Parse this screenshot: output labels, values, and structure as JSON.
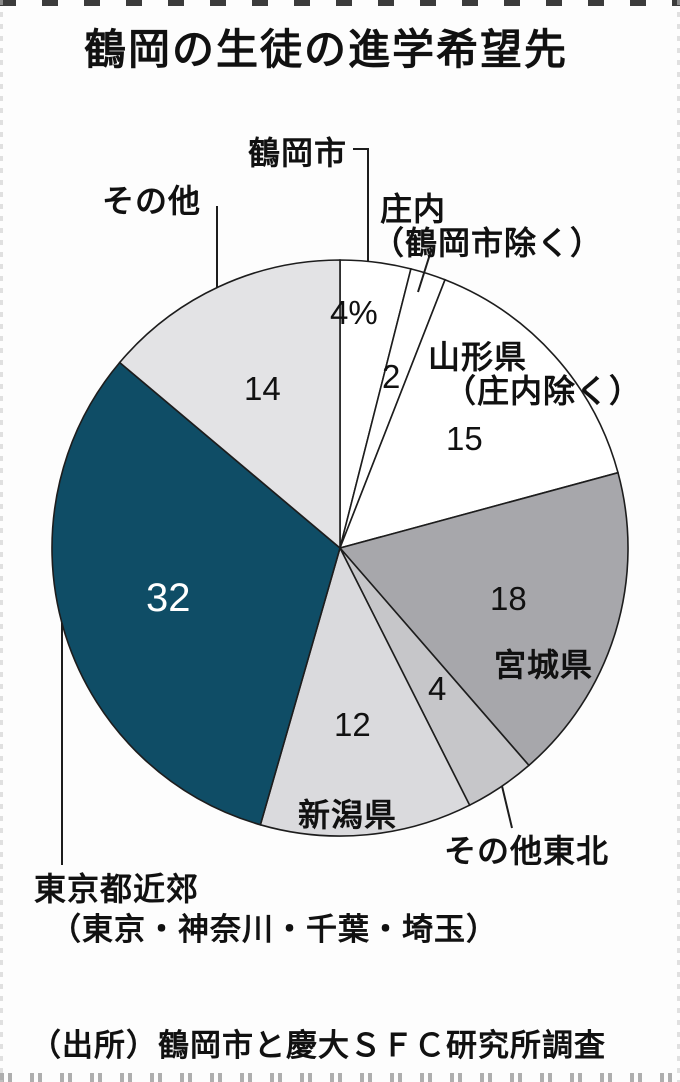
{
  "title": "鶴岡の生徒の進学希望先",
  "source": "（出所）鶴岡市と慶大ＳＦＣ研究所調査",
  "chart_data": {
    "type": "pie",
    "title": "鶴岡の生徒の進学希望先",
    "unit": "%",
    "start_angle_deg": 0,
    "direction": "clockwise",
    "legend_position": "none",
    "labels_on_chart": true,
    "slices": [
      {
        "label": "鶴岡市",
        "value": 4,
        "value_label": "4%",
        "color": "#ffffff"
      },
      {
        "label": "庄内（鶴岡市除く）",
        "value": 2,
        "value_label": "2",
        "color": "#ffffff"
      },
      {
        "label": "山形県（庄内除く）",
        "value": 15,
        "value_label": "15",
        "color": "#ffffff"
      },
      {
        "label": "宮城県",
        "value": 18,
        "value_label": "18",
        "color": "#a7a7ab"
      },
      {
        "label": "その他東北",
        "value": 4,
        "value_label": "4",
        "color": "#c6c6c9"
      },
      {
        "label": "新潟県",
        "value": 12,
        "value_label": "12",
        "color": "#dadadd"
      },
      {
        "label": "東京都近郊（東京・神奈川・千葉・埼玉）",
        "value": 32,
        "value_label": "32",
        "color": "#0f4d66"
      },
      {
        "label": "その他",
        "value": 14,
        "value_label": "14",
        "color": "#e3e3e5"
      }
    ],
    "source": "（出所）鶴岡市と慶大ＳＦＣ研究所調査"
  },
  "labels": {
    "tsuruoka": "鶴岡市",
    "shonai_line1": "庄内",
    "shonai_line2": "（鶴岡市除く）",
    "yamagata_line1": "山形県",
    "yamagata_line2": "（庄内除く）",
    "miyagi": "宮城県",
    "tohoku_other": "その他東北",
    "niigata": "新潟県",
    "tokyo_line1": "東京都近郊",
    "tokyo_line2": "（東京・神奈川・千葉・埼玉）",
    "other": "その他"
  },
  "colors": {
    "accent_teal": "#0f4d66",
    "line": "#1d1d1d",
    "text": "#111111"
  }
}
